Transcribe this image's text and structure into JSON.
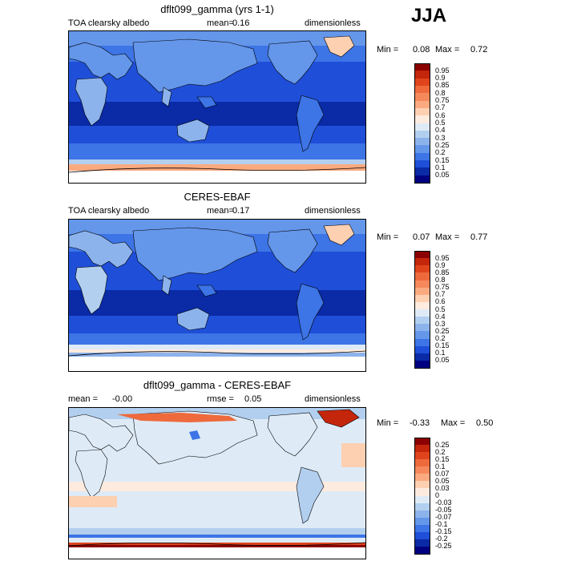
{
  "season": "JJA",
  "panels": [
    {
      "title": "dflt099_gamma (yrs 1-1)",
      "left_label": "TOA clearsky albedo",
      "mean_label": "mean=",
      "mean_value": "0.16",
      "units": "dimensionless",
      "min_label": "Min =",
      "min_value": "0.08",
      "max_label": "Max =",
      "max_value": "0.72",
      "colorbar": {
        "labels": [
          "0.95",
          "0.9",
          "0.85",
          "0.8",
          "0.75",
          "0.7",
          "0.6",
          "0.5",
          "0.4",
          "0.3",
          "0.25",
          "0.2",
          "0.15",
          "0.1",
          "0.05"
        ],
        "colors": [
          "#8b0000",
          "#c4260b",
          "#e0441c",
          "#ee6a3c",
          "#f5895c",
          "#fbaa80",
          "#fdd0b1",
          "#fdebdf",
          "#deebf7",
          "#b2cfef",
          "#8db3ec",
          "#6496ea",
          "#3d74e6",
          "#1f4fd8",
          "#0a2aa6",
          "#000080"
        ]
      }
    },
    {
      "title": "CERES-EBAF",
      "left_label": "TOA clearsky albedo",
      "mean_label": "mean=",
      "mean_value": "0.17",
      "units": "dimensionless",
      "min_label": "Min =",
      "min_value": "0.07",
      "max_label": "Max =",
      "max_value": "0.77",
      "colorbar": {
        "labels": [
          "0.95",
          "0.9",
          "0.85",
          "0.8",
          "0.75",
          "0.7",
          "0.6",
          "0.5",
          "0.4",
          "0.3",
          "0.25",
          "0.2",
          "0.15",
          "0.1",
          "0.05"
        ],
        "colors": [
          "#8b0000",
          "#c4260b",
          "#e0441c",
          "#ee6a3c",
          "#f5895c",
          "#fbaa80",
          "#fdd0b1",
          "#fdebdf",
          "#deebf7",
          "#b2cfef",
          "#8db3ec",
          "#6496ea",
          "#3d74e6",
          "#1f4fd8",
          "#0a2aa6",
          "#000080"
        ]
      }
    },
    {
      "title": "dflt099_gamma - CERES-EBAF",
      "left_label": "mean =",
      "mean_label": "rmse =",
      "left_value": "-0.00",
      "mean_value": "0.05",
      "units": "dimensionless",
      "min_label": "Min =",
      "min_value": "-0.33",
      "max_label": "Max =",
      "max_value": "0.50",
      "colorbar": {
        "labels": [
          "0.25",
          "0.2",
          "0.15",
          "0.1",
          "0.07",
          "0.05",
          "0.03",
          "0",
          "-0.03",
          "-0.05",
          "-0.07",
          "-0.1",
          "-0.15",
          "-0.2",
          "-0.25"
        ],
        "colors": [
          "#8b0000",
          "#c4260b",
          "#e0441c",
          "#ee6a3c",
          "#f5895c",
          "#fbaa80",
          "#fdd0b1",
          "#fdebdf",
          "#deebf7",
          "#b2cfef",
          "#8db3ec",
          "#6496ea",
          "#3d74e6",
          "#1f4fd8",
          "#0a2aa6",
          "#000080"
        ]
      }
    }
  ]
}
